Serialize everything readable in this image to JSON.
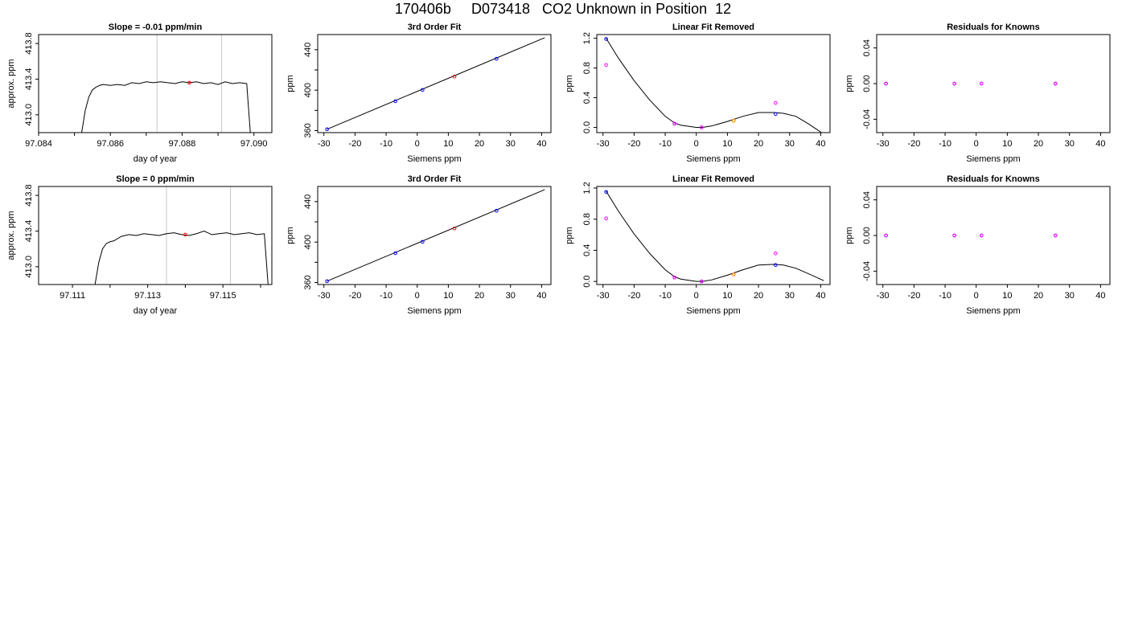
{
  "page": {
    "title": "170406b     D073418   CO2 Unknown in Position  12"
  },
  "chart_data": [
    {
      "type": "line",
      "title": "Slope =  -0.01  ppm/min",
      "xlabel": "day of year",
      "ylabel": "approx. ppm",
      "xlim": [
        97.084,
        97.0905
      ],
      "ylim": [
        412.8,
        413.9
      ],
      "xticks": [
        97.084,
        97.085,
        97.086,
        97.087,
        97.088,
        97.089,
        97.09
      ],
      "xtick_labels": [
        "97.084",
        "",
        "97.086",
        "",
        "97.088",
        "",
        "97.090"
      ],
      "yticks": [
        413.0,
        413.4,
        413.8
      ],
      "ytick_labels": [
        "413.0",
        "413.4",
        "413.8"
      ],
      "vlines": [
        97.0873,
        97.0891
      ],
      "series": [
        {
          "color": "#000000",
          "x": [
            97.0852,
            97.0853,
            97.0854,
            97.0855,
            97.0856,
            97.0857,
            97.0858,
            97.086,
            97.0862,
            97.0864,
            97.0866,
            97.0868,
            97.087,
            97.0872,
            97.0874,
            97.0876,
            97.0878,
            97.088,
            97.0882,
            97.0884,
            97.0886,
            97.0888,
            97.089,
            97.0892,
            97.0894,
            97.0896,
            97.0898,
            97.0899
          ],
          "y": [
            412.8,
            413.05,
            413.2,
            413.28,
            413.31,
            413.33,
            413.34,
            413.33,
            413.34,
            413.33,
            413.36,
            413.35,
            413.37,
            413.36,
            413.37,
            413.36,
            413.35,
            413.37,
            413.36,
            413.37,
            413.35,
            413.36,
            413.34,
            413.37,
            413.35,
            413.36,
            413.35,
            412.8
          ]
        }
      ],
      "points": [
        {
          "x": 97.0882,
          "y": 413.36,
          "color": "#ff0000"
        }
      ]
    },
    {
      "type": "scatter",
      "title": "3rd Order Fit",
      "xlabel": "Siemens ppm",
      "ylabel": "ppm",
      "xlim": [
        -32,
        43
      ],
      "ylim": [
        358,
        455
      ],
      "xticks": [
        -30,
        -20,
        -10,
        0,
        10,
        20,
        30,
        40
      ],
      "xtick_labels": [
        "-30",
        "-20",
        "-10",
        "0",
        "10",
        "20",
        "30",
        "40"
      ],
      "yticks": [
        360,
        380,
        400,
        420,
        440
      ],
      "ytick_labels": [
        "360",
        "",
        "400",
        "",
        "440"
      ],
      "curve": {
        "x": [
          -29,
          41
        ],
        "y": [
          361.3,
          451.9
        ]
      },
      "points": [
        {
          "x": -29,
          "y": 361.3,
          "color": "#0000ff"
        },
        {
          "x": -7,
          "y": 389.0,
          "color": "#0000ff"
        },
        {
          "x": 1.7,
          "y": 400.2,
          "color": "#0000ff"
        },
        {
          "x": 12,
          "y": 413.5,
          "color": "#ff0000"
        },
        {
          "x": 25.5,
          "y": 431.0,
          "color": "#0000ff"
        }
      ]
    },
    {
      "type": "scatter",
      "title": "Linear Fit Removed",
      "xlabel": "Siemens ppm",
      "ylabel": "ppm",
      "xlim": [
        -32,
        43
      ],
      "ylim": [
        -0.07,
        1.25
      ],
      "xticks": [
        -30,
        -20,
        -10,
        0,
        10,
        20,
        30,
        40
      ],
      "xtick_labels": [
        "-30",
        "-20",
        "-10",
        "0",
        "10",
        "20",
        "30",
        "40"
      ],
      "yticks": [
        0.0,
        0.4,
        0.8,
        1.2
      ],
      "ytick_labels": [
        "0.0",
        "0.4",
        "0.8",
        "1.2"
      ],
      "curve": {
        "x": [
          -29,
          -25,
          -20,
          -15,
          -10,
          -7,
          -5,
          0,
          2,
          5,
          10,
          15,
          20,
          25,
          28,
          32,
          36,
          41
        ],
        "y": [
          1.2,
          0.93,
          0.63,
          0.37,
          0.15,
          0.06,
          0.03,
          0.0,
          0.0,
          0.02,
          0.08,
          0.15,
          0.2,
          0.2,
          0.19,
          0.15,
          0.05,
          -0.09
        ]
      },
      "points": [
        {
          "x": -29,
          "y": 1.19,
          "color": "#0000ff"
        },
        {
          "x": -29,
          "y": 0.84,
          "color": "#ff00ff"
        },
        {
          "x": -7,
          "y": 0.05,
          "color": "#0000ff"
        },
        {
          "x": -7,
          "y": 0.05,
          "color": "#ff00ff"
        },
        {
          "x": 1.7,
          "y": 0.0,
          "color": "#0000ff"
        },
        {
          "x": 1.7,
          "y": 0.0,
          "color": "#ff00ff"
        },
        {
          "x": 12,
          "y": 0.09,
          "color": "#ff0000"
        },
        {
          "x": 12,
          "y": 0.09,
          "color": "#ff9900"
        },
        {
          "x": 25.5,
          "y": 0.18,
          "color": "#0000ff"
        },
        {
          "x": 25.5,
          "y": 0.33,
          "color": "#ff00ff"
        }
      ]
    },
    {
      "type": "scatter",
      "title": "Residuals for Knowns",
      "xlabel": "Siemens ppm",
      "ylabel": "ppm",
      "xlim": [
        -32,
        43
      ],
      "ylim": [
        -0.055,
        0.055
      ],
      "xticks": [
        -30,
        -20,
        -10,
        0,
        10,
        20,
        30,
        40
      ],
      "xtick_labels": [
        "-30",
        "-20",
        "-10",
        "0",
        "10",
        "20",
        "30",
        "40"
      ],
      "yticks": [
        -0.04,
        0.0,
        0.04
      ],
      "ytick_labels": [
        "-0.04",
        "0.00",
        "0.04"
      ],
      "points": [
        {
          "x": -29,
          "y": 0.0,
          "color": "#0000ff"
        },
        {
          "x": -7,
          "y": 0.0,
          "color": "#0000ff"
        },
        {
          "x": 1.7,
          "y": 0.0,
          "color": "#0000ff"
        },
        {
          "x": 25.5,
          "y": 0.0,
          "color": "#0000ff"
        },
        {
          "x": -29,
          "y": 0.0,
          "color": "#ff00ff"
        },
        {
          "x": -7,
          "y": 0.0,
          "color": "#ff00ff"
        },
        {
          "x": 1.7,
          "y": 0.0,
          "color": "#ff00ff"
        },
        {
          "x": 25.5,
          "y": 0.0,
          "color": "#ff00ff"
        }
      ]
    },
    {
      "type": "line",
      "title": "Slope =  0  ppm/min",
      "xlabel": "day of year",
      "ylabel": "approx. ppm",
      "xlim": [
        97.1101,
        97.1163
      ],
      "ylim": [
        412.8,
        413.9
      ],
      "xticks": [
        97.111,
        97.112,
        97.113,
        97.114,
        97.115,
        97.116
      ],
      "xtick_labels": [
        "97.111",
        "",
        "97.113",
        "",
        "97.115",
        ""
      ],
      "yticks": [
        413.0,
        413.4,
        413.8
      ],
      "ytick_labels": [
        "413.0",
        "413.4",
        "413.8"
      ],
      "vlines": [
        97.1135,
        97.1152
      ],
      "series": [
        {
          "color": "#000000",
          "x": [
            97.1116,
            97.1117,
            97.1118,
            97.1119,
            97.112,
            97.1121,
            97.1123,
            97.1125,
            97.1127,
            97.1129,
            97.1131,
            97.1133,
            97.1135,
            97.1137,
            97.1139,
            97.1141,
            97.1143,
            97.1145,
            97.1147,
            97.1149,
            97.1151,
            97.1153,
            97.1155,
            97.1157,
            97.1159,
            97.1161,
            97.1162
          ],
          "y": [
            412.8,
            413.05,
            413.2,
            413.26,
            413.28,
            413.29,
            413.34,
            413.36,
            413.35,
            413.37,
            413.36,
            413.35,
            413.37,
            413.38,
            413.36,
            413.35,
            413.37,
            413.4,
            413.36,
            413.37,
            413.38,
            413.36,
            413.37,
            413.38,
            413.36,
            413.37,
            412.8
          ]
        }
      ],
      "points": [
        {
          "x": 97.114,
          "y": 413.36,
          "color": "#ff0000"
        }
      ]
    },
    {
      "type": "scatter",
      "title": "3rd Order Fit",
      "xlabel": "Siemens ppm",
      "ylabel": "ppm",
      "xlim": [
        -32,
        43
      ],
      "ylim": [
        358,
        455
      ],
      "xticks": [
        -30,
        -20,
        -10,
        0,
        10,
        20,
        30,
        40
      ],
      "xtick_labels": [
        "-30",
        "-20",
        "-10",
        "0",
        "10",
        "20",
        "30",
        "40"
      ],
      "yticks": [
        360,
        380,
        400,
        420,
        440
      ],
      "ytick_labels": [
        "360",
        "",
        "400",
        "",
        "440"
      ],
      "curve": {
        "x": [
          -29,
          41
        ],
        "y": [
          361.3,
          451.9
        ]
      },
      "points": [
        {
          "x": -29,
          "y": 361.3,
          "color": "#0000ff"
        },
        {
          "x": -7,
          "y": 389.0,
          "color": "#0000ff"
        },
        {
          "x": 1.7,
          "y": 400.2,
          "color": "#0000ff"
        },
        {
          "x": 12,
          "y": 413.5,
          "color": "#ff0000"
        },
        {
          "x": 25.5,
          "y": 431.0,
          "color": "#0000ff"
        }
      ]
    },
    {
      "type": "scatter",
      "title": "Linear Fit Removed",
      "xlabel": "Siemens ppm",
      "ylabel": "ppm",
      "xlim": [
        -32,
        43
      ],
      "ylim": [
        -0.04,
        1.22
      ],
      "xticks": [
        -30,
        -20,
        -10,
        0,
        10,
        20,
        30,
        40
      ],
      "xtick_labels": [
        "-30",
        "-20",
        "-10",
        "0",
        "10",
        "20",
        "30",
        "40"
      ],
      "yticks": [
        0.0,
        0.4,
        0.8,
        1.2
      ],
      "ytick_labels": [
        "0.0",
        "0.4",
        "0.8",
        "1.2"
      ],
      "curve": {
        "x": [
          -29,
          -25,
          -20,
          -15,
          -10,
          -7,
          -5,
          0,
          2,
          5,
          10,
          15,
          20,
          25,
          28,
          32,
          36,
          41
        ],
        "y": [
          1.16,
          0.9,
          0.61,
          0.36,
          0.15,
          0.06,
          0.03,
          0.0,
          0.0,
          0.02,
          0.08,
          0.15,
          0.21,
          0.22,
          0.21,
          0.17,
          0.1,
          0.01
        ]
      },
      "points": [
        {
          "x": -29,
          "y": 1.15,
          "color": "#0000ff"
        },
        {
          "x": -29,
          "y": 0.81,
          "color": "#ff00ff"
        },
        {
          "x": -7,
          "y": 0.05,
          "color": "#0000ff"
        },
        {
          "x": -7,
          "y": 0.05,
          "color": "#ff00ff"
        },
        {
          "x": 1.7,
          "y": 0.0,
          "color": "#0000ff"
        },
        {
          "x": 1.7,
          "y": 0.0,
          "color": "#ff00ff"
        },
        {
          "x": 12,
          "y": 0.09,
          "color": "#ff0000"
        },
        {
          "x": 12,
          "y": 0.09,
          "color": "#ff9900"
        },
        {
          "x": 25.5,
          "y": 0.21,
          "color": "#0000ff"
        },
        {
          "x": 25.5,
          "y": 0.36,
          "color": "#ff00ff"
        }
      ]
    },
    {
      "type": "scatter",
      "title": "Residuals for Knowns",
      "xlabel": "Siemens ppm",
      "ylabel": "ppm",
      "xlim": [
        -32,
        43
      ],
      "ylim": [
        -0.055,
        0.055
      ],
      "xticks": [
        -30,
        -20,
        -10,
        0,
        10,
        20,
        30,
        40
      ],
      "xtick_labels": [
        "-30",
        "-20",
        "-10",
        "0",
        "10",
        "20",
        "30",
        "40"
      ],
      "yticks": [
        -0.04,
        0.0,
        0.04
      ],
      "ytick_labels": [
        "-0.04",
        "0.00",
        "0.04"
      ],
      "points": [
        {
          "x": -29,
          "y": 0.0,
          "color": "#0000ff"
        },
        {
          "x": -7,
          "y": 0.0,
          "color": "#0000ff"
        },
        {
          "x": 1.7,
          "y": 0.0,
          "color": "#0000ff"
        },
        {
          "x": 25.5,
          "y": 0.0,
          "color": "#0000ff"
        },
        {
          "x": -29,
          "y": 0.0,
          "color": "#ff00ff"
        },
        {
          "x": -7,
          "y": 0.0,
          "color": "#ff00ff"
        },
        {
          "x": 1.7,
          "y": 0.0,
          "color": "#ff00ff"
        },
        {
          "x": 25.5,
          "y": 0.0,
          "color": "#ff00ff"
        }
      ]
    }
  ]
}
